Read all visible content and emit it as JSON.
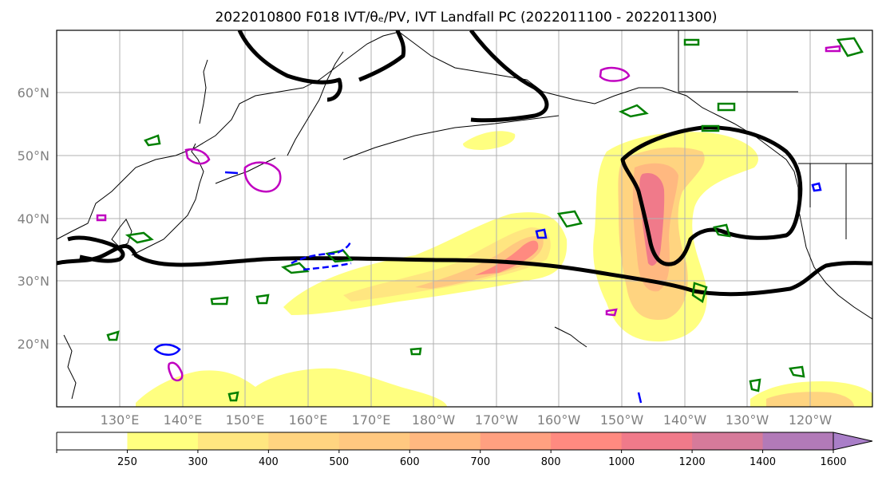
{
  "map": {
    "title": "2022010800 F018 IVT/θₑ/PV, IVT Landfall PC (2022011100 - 2022011300)",
    "lat_labels": [
      "60°N",
      "50°N",
      "40°N",
      "30°N",
      "20°N"
    ],
    "lon_labels": [
      "130°E",
      "140°E",
      "150°E",
      "160°E",
      "170°E",
      "180°W",
      "170°W",
      "160°W",
      "150°W",
      "140°W",
      "130°W",
      "120°W"
    ],
    "projection": "PlateCarree",
    "extent_lon": [
      120,
      250
    ],
    "extent_lat": [
      10,
      70
    ],
    "grid": true
  },
  "colorbar": {
    "levels": [
      "250",
      "300",
      "400",
      "500",
      "600",
      "700",
      "800",
      "1000",
      "1200",
      "1400",
      "1600"
    ],
    "colors": [
      "#ffffff",
      "#ffff80",
      "#ffe680",
      "#ffd480",
      "#ffc880",
      "#ffb880",
      "#ffa080",
      "#ff8a80",
      "#f07a8a",
      "#d67a9a",
      "#b27ab8",
      "#a97ec8"
    ],
    "extend": "max"
  },
  "legend_colors": {
    "pc_contour": "#000000",
    "theta_e": "#008000",
    "pv_positive": "#c000c0",
    "pv_negative": "#0000ff"
  }
}
